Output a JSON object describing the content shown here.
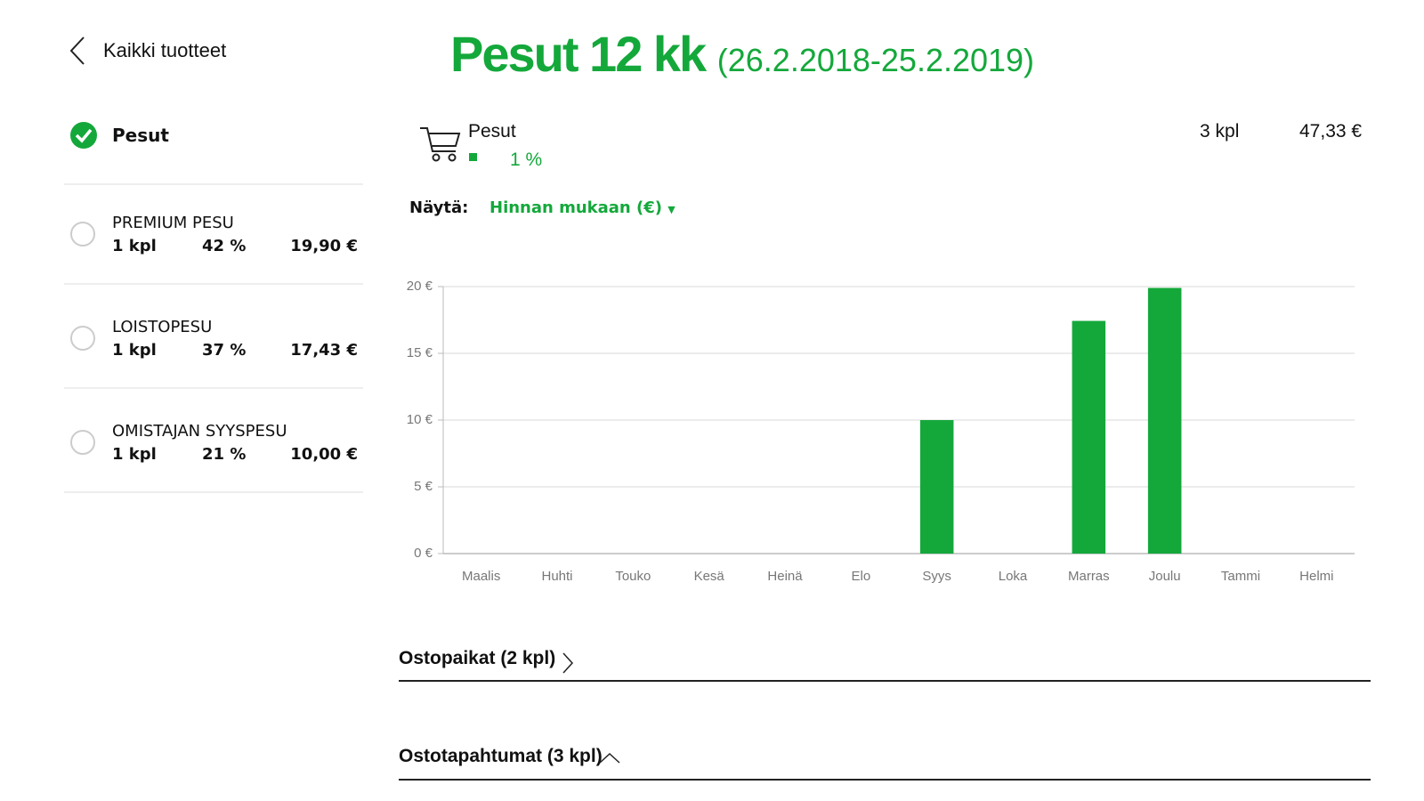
{
  "back_link": "Kaikki tuotteet",
  "header": {
    "title": "Pesut 12 kk",
    "period": "(26.2.2018-25.2.2019)"
  },
  "sidebar": {
    "selected": "Pesut",
    "products": [
      {
        "name": "PREMIUM PESU",
        "quantity": "1 kpl",
        "share": "42 %",
        "price": "19,90 €"
      },
      {
        "name": "LOISTOPESU",
        "quantity": "1 kpl",
        "share": "37 %",
        "price": "17,43 €"
      },
      {
        "name": "OMISTAJAN SYYSPESU",
        "quantity": "1 kpl",
        "share": "21 %",
        "price": "10,00 €"
      }
    ]
  },
  "summary": {
    "name": "Pesut",
    "share": "1 %",
    "quantity": "3 kpl",
    "total": "47,33 €"
  },
  "filter": {
    "label": "Näytä:",
    "value": "Hinnan mukaan (€)"
  },
  "chart_data": {
    "type": "bar",
    "categories": [
      "Maalis",
      "Huhti",
      "Touko",
      "Kesä",
      "Heinä",
      "Elo",
      "Syys",
      "Loka",
      "Marras",
      "Joulu",
      "Tammi",
      "Helmi"
    ],
    "values": [
      0,
      0,
      0,
      0,
      0,
      0,
      10,
      0,
      17.43,
      19.9,
      0,
      0
    ],
    "color": "#14a83b",
    "ylim": [
      0,
      20
    ],
    "yticks": [
      {
        "value": 0,
        "label": "0 €"
      },
      {
        "value": 5,
        "label": "5 €"
      },
      {
        "value": 10,
        "label": "10 €"
      },
      {
        "value": 15,
        "label": "15 €"
      },
      {
        "value": 20,
        "label": "20 €"
      }
    ],
    "grid": true
  },
  "sections": [
    "Ostopaikat (2 kpl)",
    "Ostotapahtumat (3 kpl)"
  ]
}
